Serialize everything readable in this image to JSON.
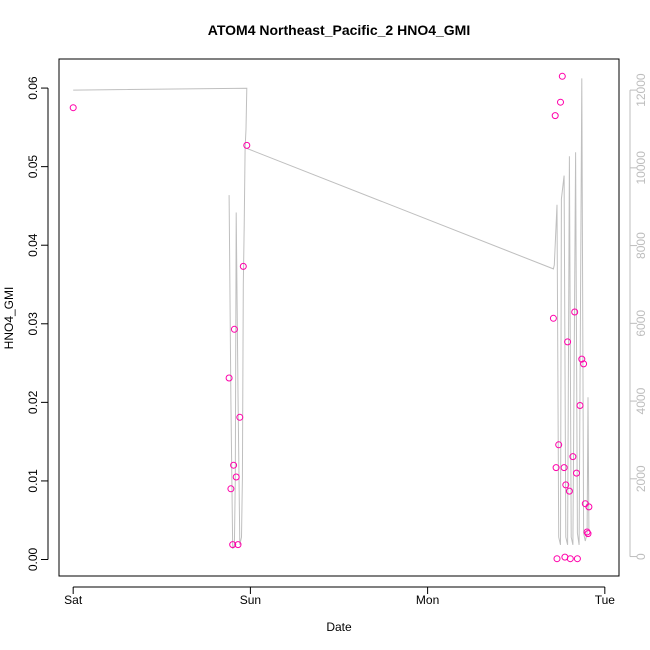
{
  "chart_data": {
    "type": "scatter",
    "title": "ATOM4 Northeast_Pacific_2 HNO4_GMI",
    "xlabel": "Date",
    "ylabel": "HNO4_GMI",
    "x_ticks": [
      "Sat",
      "Sun",
      "Mon",
      "Tue"
    ],
    "xlim_days": [
      -0.08,
      3.08
    ],
    "ylim": [
      -0.0021,
      0.0637
    ],
    "y_ticks": [
      "0.00",
      "0.01",
      "0.02",
      "0.03",
      "0.04",
      "0.05",
      "0.06"
    ],
    "y2lim": [
      -500,
      12800
    ],
    "y2_ticks": [
      "0",
      "2000",
      "4000",
      "6000",
      "8000",
      "10000",
      "12000"
    ],
    "grid": false,
    "colors": {
      "points": "#ff00aa",
      "line": "#bfbfbf",
      "right_axis": "#bdbdbd"
    },
    "series": [
      {
        "axis": "left",
        "marker": "open-circle",
        "points": [
          {
            "x": 0.0,
            "y": 0.0575
          },
          {
            "x": 0.88,
            "y": 0.0231
          },
          {
            "x": 0.89,
            "y": 0.009
          },
          {
            "x": 0.9,
            "y": 0.0019
          },
          {
            "x": 0.905,
            "y": 0.012
          },
          {
            "x": 0.91,
            "y": 0.0293
          },
          {
            "x": 0.92,
            "y": 0.0105
          },
          {
            "x": 0.93,
            "y": 0.0019
          },
          {
            "x": 0.94,
            "y": 0.0181
          },
          {
            "x": 0.96,
            "y": 0.0373
          },
          {
            "x": 0.98,
            "y": 0.0527
          },
          {
            "x": 2.71,
            "y": 0.0307
          },
          {
            "x": 2.72,
            "y": 0.0565
          },
          {
            "x": 2.725,
            "y": 0.0117
          },
          {
            "x": 2.73,
            "y": 0.0001
          },
          {
            "x": 2.74,
            "y": 0.0146
          },
          {
            "x": 2.75,
            "y": 0.0582
          },
          {
            "x": 2.76,
            "y": 0.0615
          },
          {
            "x": 2.77,
            "y": 0.0117
          },
          {
            "x": 2.775,
            "y": 0.0003
          },
          {
            "x": 2.78,
            "y": 0.0095
          },
          {
            "x": 2.79,
            "y": 0.0277
          },
          {
            "x": 2.8,
            "y": 0.0087
          },
          {
            "x": 2.805,
            "y": 0.0001
          },
          {
            "x": 2.82,
            "y": 0.0131
          },
          {
            "x": 2.83,
            "y": 0.0315
          },
          {
            "x": 2.84,
            "y": 0.011
          },
          {
            "x": 2.845,
            "y": 0.0001
          },
          {
            "x": 2.86,
            "y": 0.0196
          },
          {
            "x": 2.87,
            "y": 0.0255
          },
          {
            "x": 2.88,
            "y": 0.0249
          },
          {
            "x": 2.89,
            "y": 0.0071
          },
          {
            "x": 2.9,
            "y": 0.0035
          },
          {
            "x": 2.905,
            "y": 0.0033
          },
          {
            "x": 2.91,
            "y": 0.0067
          }
        ]
      },
      {
        "axis": "right",
        "marker": "line",
        "points": [
          {
            "x": 0.0,
            "y": 12000
          },
          {
            "x": 0.98,
            "y": 12050
          },
          {
            "x": 0.975,
            "y": 11000
          },
          {
            "x": 0.97,
            "y": 10500
          },
          {
            "x": 0.965,
            "y": 8500
          },
          {
            "x": 0.96,
            "y": 7000
          },
          {
            "x": 0.955,
            "y": 2000
          },
          {
            "x": 0.95,
            "y": 500
          },
          {
            "x": 0.94,
            "y": 300
          },
          {
            "x": 0.93,
            "y": 4200
          },
          {
            "x": 0.92,
            "y": 8850
          },
          {
            "x": 0.915,
            "y": 2000
          },
          {
            "x": 0.91,
            "y": 300
          },
          {
            "x": 0.9,
            "y": 200
          },
          {
            "x": 0.89,
            "y": 4000
          },
          {
            "x": 0.88,
            "y": 9300
          }
        ]
      },
      {
        "axis": "right",
        "marker": "line",
        "points": [
          {
            "x": 0.98,
            "y": 10500
          },
          {
            "x": 2.71,
            "y": 7400
          },
          {
            "x": 2.715,
            "y": 7500
          },
          {
            "x": 2.73,
            "y": 9050
          },
          {
            "x": 2.74,
            "y": 500
          },
          {
            "x": 2.75,
            "y": 300
          },
          {
            "x": 2.755,
            "y": 9200
          },
          {
            "x": 2.77,
            "y": 9800
          },
          {
            "x": 2.78,
            "y": 500
          },
          {
            "x": 2.79,
            "y": 300
          },
          {
            "x": 2.8,
            "y": 10300
          },
          {
            "x": 2.81,
            "y": 500
          },
          {
            "x": 2.82,
            "y": 300
          },
          {
            "x": 2.835,
            "y": 10400
          },
          {
            "x": 2.845,
            "y": 600
          },
          {
            "x": 2.855,
            "y": 300
          },
          {
            "x": 2.87,
            "y": 12300
          },
          {
            "x": 2.88,
            "y": 600
          },
          {
            "x": 2.89,
            "y": 400
          },
          {
            "x": 2.9,
            "y": 600
          },
          {
            "x": 2.905,
            "y": 4100
          },
          {
            "x": 2.91,
            "y": 700
          }
        ]
      }
    ]
  }
}
